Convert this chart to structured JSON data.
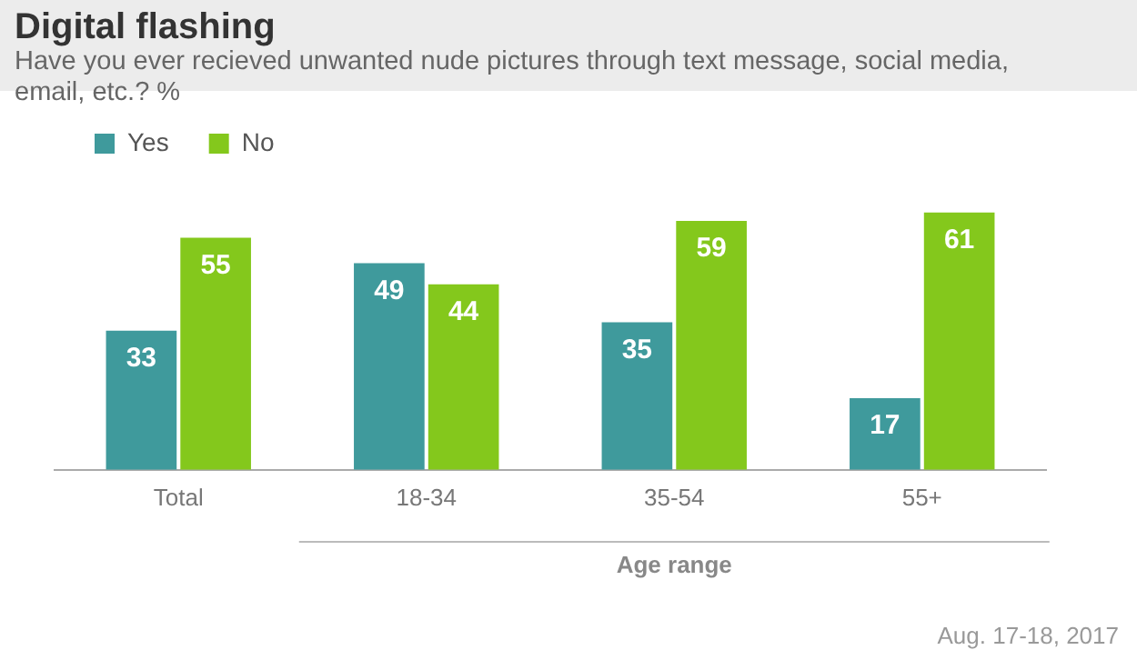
{
  "chart_data": {
    "type": "bar",
    "title": "Digital flashing",
    "subtitle": "Have you ever recieved unwanted nude pictures through text message, social media, email, etc.? %",
    "xlabel": "Age range",
    "categories": [
      "Total",
      "18-34",
      "35-54",
      "55+"
    ],
    "series": [
      {
        "name": "Yes",
        "color": "#3f9a9c",
        "values": [
          33,
          49,
          35,
          17
        ]
      },
      {
        "name": "No",
        "color": "#84c81c",
        "values": [
          55,
          44,
          59,
          61
        ]
      }
    ],
    "data_labels": true,
    "grid": false,
    "legend": "top left",
    "tick_labels": "x",
    "annotations": [
      "Aug. 17-18, 2017"
    ]
  }
}
